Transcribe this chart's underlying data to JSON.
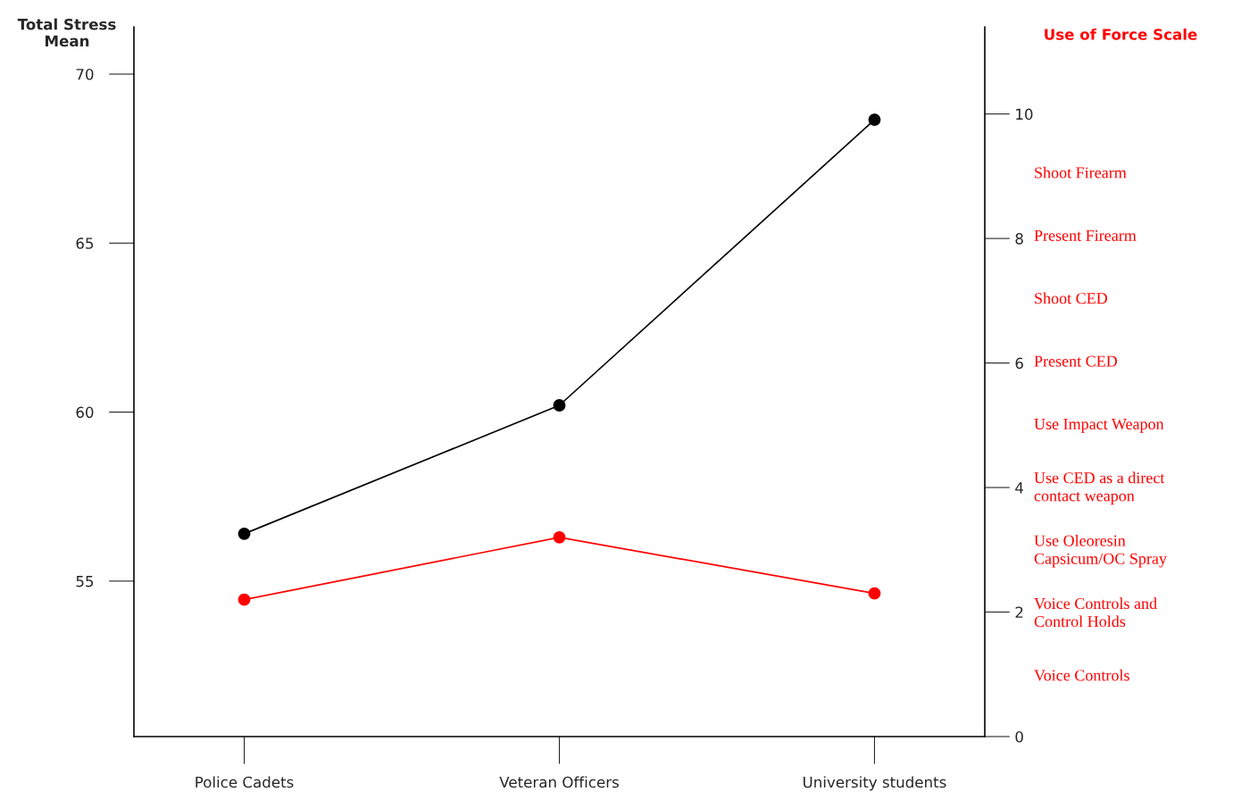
{
  "chart_data": {
    "type": "line",
    "categories": [
      "Police Cadets",
      "Veteran Officers",
      "University students"
    ],
    "series": [
      {
        "color": "#000000",
        "values": [
          56.4,
          60.2,
          68.65
        ]
      },
      {
        "color": "#ff0000",
        "values": [
          2.2,
          3.2,
          2.3
        ],
        "axis": "y2"
      }
    ],
    "ylabel": "Total Stress\nMean",
    "y2label": "Use of Force Scale",
    "ylim": [
      50.4,
      71.4
    ],
    "yticks": [
      55,
      60,
      65,
      70
    ],
    "y2lim": [
      0,
      11.4
    ],
    "y2ticks": [
      0,
      2,
      4,
      6,
      8,
      10
    ],
    "marker": "circle",
    "line_style": "solid",
    "grid": false,
    "legend": false,
    "annotations": [
      "Shoot Firearm",
      "Present Firearm",
      "Shoot CED",
      "Present CED",
      "Use Impact Weapon",
      "Use CED as a direct\ncontact weapon",
      "Use Oleoresin\nCapsicum/OC Spray",
      "Voice Controls and\nControl Holds",
      "Voice Controls"
    ]
  }
}
